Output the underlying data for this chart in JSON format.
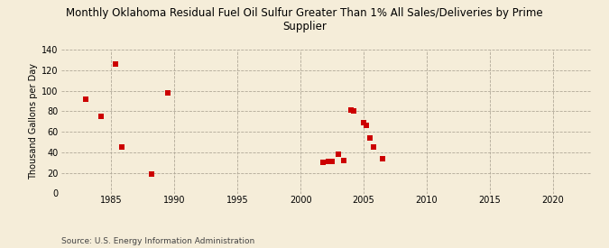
{
  "title": "Monthly Oklahoma Residual Fuel Oil Sulfur Greater Than 1% All Sales/Deliveries by Prime\nSupplier",
  "ylabel": "Thousand Gallons per Day",
  "source": "Source: U.S. Energy Information Administration",
  "background_color": "#f5edd9",
  "plot_bg_color": "#f5edd9",
  "marker_color": "#cc0000",
  "marker": "s",
  "marker_size": 14,
  "xlim": [
    1981,
    2023
  ],
  "ylim": [
    0,
    140
  ],
  "xticks": [
    1985,
    1990,
    1995,
    2000,
    2005,
    2010,
    2015,
    2020
  ],
  "yticks": [
    0,
    20,
    40,
    60,
    80,
    100,
    120,
    140
  ],
  "data_points": [
    [
      1983.0,
      92
    ],
    [
      1984.2,
      75
    ],
    [
      1985.3,
      126
    ],
    [
      1985.8,
      45
    ],
    [
      1988.2,
      19
    ],
    [
      1989.5,
      98
    ],
    [
      2001.8,
      30
    ],
    [
      2002.2,
      31
    ],
    [
      2003.0,
      38
    ],
    [
      2003.4,
      32
    ],
    [
      2004.0,
      81
    ],
    [
      2004.2,
      80
    ],
    [
      2005.0,
      69
    ],
    [
      2005.2,
      66
    ],
    [
      2005.5,
      54
    ],
    [
      2005.8,
      45
    ],
    [
      2006.5,
      34
    ],
    [
      2002.5,
      31
    ]
  ],
  "title_fontsize": 8.5,
  "tick_fontsize": 7,
  "ylabel_fontsize": 7,
  "source_fontsize": 6.5
}
